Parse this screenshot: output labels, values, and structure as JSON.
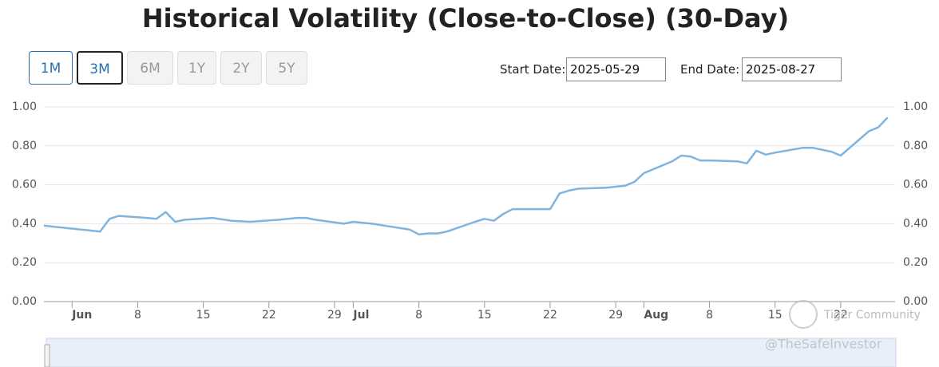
{
  "chart_data": {
    "type": "line",
    "title": "Historical Volatility (Close-to-Close) (30-Day)",
    "x": [
      "2025-05-29",
      "2025-05-30",
      "2025-06-02",
      "2025-06-04",
      "2025-06-05",
      "2025-06-06",
      "2025-06-09",
      "2025-06-10",
      "2025-06-11",
      "2025-06-12",
      "2025-06-13",
      "2025-06-16",
      "2025-06-18",
      "2025-06-20",
      "2025-06-23",
      "2025-06-25",
      "2025-06-26",
      "2025-06-27",
      "2025-06-30",
      "2025-07-01",
      "2025-07-02",
      "2025-07-03",
      "2025-07-07",
      "2025-07-08",
      "2025-07-09",
      "2025-07-10",
      "2025-07-11",
      "2025-07-14",
      "2025-07-15",
      "2025-07-16",
      "2025-07-17",
      "2025-07-18",
      "2025-07-21",
      "2025-07-22",
      "2025-07-23",
      "2025-07-24",
      "2025-07-25",
      "2025-07-28",
      "2025-07-29",
      "2025-07-30",
      "2025-07-31",
      "2025-08-01",
      "2025-08-04",
      "2025-08-05",
      "2025-08-06",
      "2025-08-07",
      "2025-08-08",
      "2025-08-11",
      "2025-08-12",
      "2025-08-13",
      "2025-08-14",
      "2025-08-15",
      "2025-08-18",
      "2025-08-19",
      "2025-08-20",
      "2025-08-21",
      "2025-08-22",
      "2025-08-25",
      "2025-08-26",
      "2025-08-27"
    ],
    "series": [
      {
        "name": "Historical Volatility",
        "color": "#7fb4df",
        "values": [
          0.39,
          0.385,
          0.37,
          0.36,
          0.425,
          0.44,
          0.43,
          0.425,
          0.46,
          0.41,
          0.42,
          0.43,
          0.415,
          0.41,
          0.42,
          0.43,
          0.43,
          0.42,
          0.4,
          0.41,
          0.405,
          0.4,
          0.37,
          0.345,
          0.35,
          0.35,
          0.36,
          0.41,
          0.425,
          0.415,
          0.45,
          0.475,
          0.475,
          0.475,
          0.555,
          0.57,
          0.58,
          0.585,
          0.59,
          0.595,
          0.615,
          0.66,
          0.72,
          0.75,
          0.745,
          0.725,
          0.725,
          0.72,
          0.71,
          0.775,
          0.755,
          0.765,
          0.79,
          0.79,
          0.78,
          0.77,
          0.75,
          0.875,
          0.895,
          0.945
        ]
      }
    ],
    "xlim": [
      "2025-05-29",
      "2025-08-27"
    ],
    "xticks": [
      {
        "value": "2025-06-01",
        "label": "Jun"
      },
      {
        "value": "2025-06-08",
        "label": "8"
      },
      {
        "value": "2025-06-15",
        "label": "15"
      },
      {
        "value": "2025-06-22",
        "label": "22"
      },
      {
        "value": "2025-06-29",
        "label": "29"
      },
      {
        "value": "2025-07-01",
        "label": "Jul"
      },
      {
        "value": "2025-07-08",
        "label": "8"
      },
      {
        "value": "2025-07-15",
        "label": "15"
      },
      {
        "value": "2025-07-22",
        "label": "22"
      },
      {
        "value": "2025-07-29",
        "label": "29"
      },
      {
        "value": "2025-08-01",
        "label": "Aug"
      },
      {
        "value": "2025-08-08",
        "label": "8"
      },
      {
        "value": "2025-08-15",
        "label": "15"
      },
      {
        "value": "2025-08-22",
        "label": "22"
      }
    ],
    "ylim": [
      0,
      1
    ],
    "yticks": [
      {
        "value": 0,
        "label": "0.00"
      },
      {
        "value": 0.2,
        "label": "0.20"
      },
      {
        "value": 0.4,
        "label": "0.40"
      },
      {
        "value": 0.6,
        "label": "0.60"
      },
      {
        "value": 0.8,
        "label": "0.80"
      },
      {
        "value": 1,
        "label": "1.00"
      }
    ],
    "y2lim": [
      0,
      1
    ],
    "y2ticks": [
      {
        "value": 0,
        "label": "0.00"
      },
      {
        "value": 0.2,
        "label": "0.20"
      },
      {
        "value": 0.4,
        "label": "0.40"
      },
      {
        "value": 0.6,
        "label": "0.60"
      },
      {
        "value": 0.8,
        "label": "0.80"
      },
      {
        "value": 1,
        "label": "1.00"
      }
    ],
    "grid": true
  },
  "ui": {
    "buttons": [
      "1M",
      "3M",
      "6M",
      "1Y",
      "2Y",
      "5Y"
    ],
    "start_label": "Start Date:",
    "start_value": "2025-05-29",
    "end_label": "End Date:",
    "end_value": "2025-08-27",
    "watermarks": [
      "Tiger Community",
      "@TheSafeInvestor"
    ]
  }
}
